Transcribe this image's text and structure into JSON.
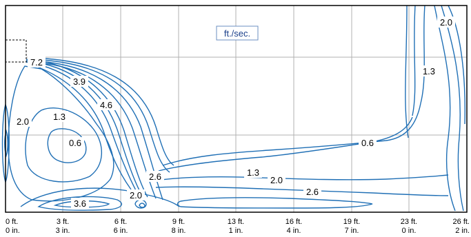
{
  "unit_label": "ft./sec.",
  "contour_labels": [
    {
      "id": "7-2",
      "text": "7.2"
    },
    {
      "id": "3-9",
      "text": "3.9"
    },
    {
      "id": "4-6",
      "text": "4.6"
    },
    {
      "id": "2-0-left",
      "text": "2.0"
    },
    {
      "id": "1-3-left",
      "text": "1.3"
    },
    {
      "id": "0-6-left",
      "text": "0.6"
    },
    {
      "id": "2-6-mid",
      "text": "2.6"
    },
    {
      "id": "2-0-bottom",
      "text": "2.0"
    },
    {
      "id": "3-6",
      "text": "3.6"
    },
    {
      "id": "1-3-mid",
      "text": "1.3"
    },
    {
      "id": "2-0-mid",
      "text": "2.0"
    },
    {
      "id": "2-6-right",
      "text": "2.6"
    },
    {
      "id": "0-6-right",
      "text": "0.6"
    },
    {
      "id": "1-3-right",
      "text": "1.3"
    },
    {
      "id": "2-0-top-right",
      "text": "2.0"
    }
  ],
  "x_ticks": [
    {
      "ft": "0 ft.",
      "in": "0 in."
    },
    {
      "ft": "3 ft.",
      "in": "3 in."
    },
    {
      "ft": "6 ft.",
      "in": "6 in."
    },
    {
      "ft": "9 ft.",
      "in": "8 in."
    },
    {
      "ft": "13 ft.",
      "in": "1 in."
    },
    {
      "ft": "16 ft.",
      "in": "4 in."
    },
    {
      "ft": "19 ft.",
      "in": "7 in."
    },
    {
      "ft": "23 ft.",
      "in": "0 in."
    },
    {
      "ft": "26 ft.",
      "in": "2 in."
    }
  ],
  "colors": {
    "contour": "#1f6fb5",
    "grid": "#b0b0b0",
    "frame": "#000000"
  }
}
